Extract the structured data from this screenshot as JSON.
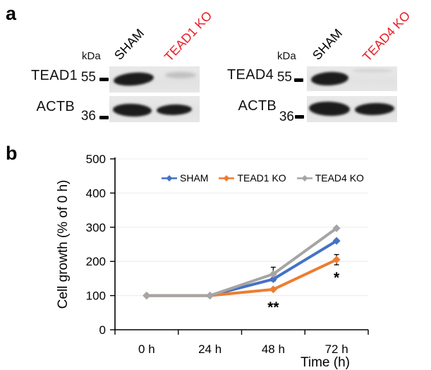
{
  "figure": {
    "panel_a_label": "a",
    "panel_b_label": "b"
  },
  "panel_a": {
    "blots": [
      {
        "kda_unit": "kDa",
        "lanes": [
          {
            "label": "SHAM",
            "color": "#000000"
          },
          {
            "label": "TEAD1 KO",
            "color": "#ed1c24"
          }
        ],
        "rows": [
          {
            "protein": "TEAD1",
            "marker_kda": "55",
            "bands": [
              "strong",
              "faint"
            ]
          },
          {
            "protein": "ACTB",
            "marker_kda": "36",
            "bands": [
              "strong",
              "strong"
            ]
          }
        ]
      },
      {
        "kda_unit": "kDa",
        "lanes": [
          {
            "label": "SHAM",
            "color": "#000000"
          },
          {
            "label": "TEAD4 KO",
            "color": "#ed1c24"
          }
        ],
        "rows": [
          {
            "protein": "TEAD4",
            "marker_kda": "55",
            "bands": [
              "strong",
              "none"
            ]
          },
          {
            "protein": "ACTB",
            "marker_kda": "36",
            "bands": [
              "strong",
              "strong"
            ]
          }
        ]
      }
    ]
  },
  "chart_data": {
    "type": "line",
    "categories": [
      "0 h",
      "24 h",
      "48 h",
      "72 h"
    ],
    "series": [
      {
        "name": "SHAM",
        "color": "#4472c4",
        "values": [
          100,
          100,
          148,
          260
        ]
      },
      {
        "name": "TEAD1 KO",
        "color": "#ed7d31",
        "values": [
          100,
          100,
          118,
          205
        ]
      },
      {
        "name": "TEAD4 KO",
        "color": "#a5a5a5",
        "values": [
          100,
          100,
          163,
          297
        ]
      }
    ],
    "error_bars": [
      {
        "series_index": 2,
        "category_index": 2,
        "value": 163,
        "error": 20
      },
      {
        "series_index": 1,
        "category_index": 3,
        "value": 205,
        "error": 15
      }
    ],
    "annotations": [
      {
        "text": "**",
        "category_index": 2,
        "attached_series": "TEAD1 KO",
        "position": "below"
      },
      {
        "text": "*",
        "category_index": 3,
        "attached_series": "TEAD1 KO",
        "position": "below"
      }
    ],
    "title": "",
    "xlabel": "Time (h)",
    "ylabel": "Cell growth (% of 0 h)",
    "ylim": [
      0,
      500
    ],
    "yticks": [
      0,
      100,
      200,
      300,
      400,
      500
    ],
    "grid": true,
    "legend_position": "top-center",
    "marker": "diamond"
  }
}
